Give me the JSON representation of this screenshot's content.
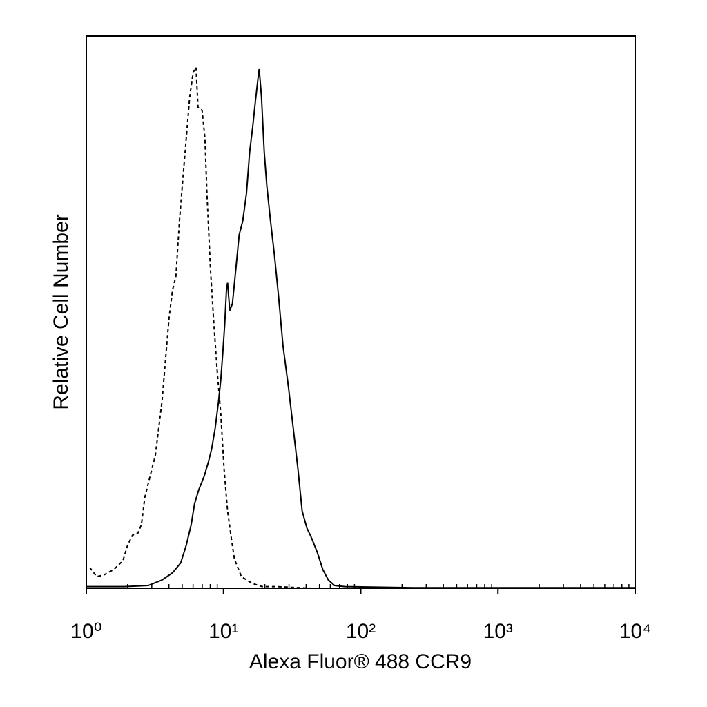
{
  "chart_data": {
    "type": "line",
    "xlabel": "Alexa Fluor® 488 CCR9",
    "ylabel": "Relative Cell Number",
    "xscale": "log",
    "xlim": [
      1,
      10000
    ],
    "xticks": [
      {
        "value": 1,
        "label": "10⁰"
      },
      {
        "value": 10,
        "label": "10¹"
      },
      {
        "value": 100,
        "label": "10²"
      },
      {
        "value": 1000,
        "label": "10³"
      },
      {
        "value": 10000,
        "label": "10⁴"
      }
    ],
    "xminorticks": [
      2,
      3,
      4,
      5,
      6,
      7,
      8,
      9,
      20,
      30,
      40,
      50,
      60,
      70,
      80,
      90,
      200,
      300,
      400,
      500,
      600,
      700,
      800,
      900,
      2000,
      3000,
      4000,
      5000,
      6000,
      7000,
      8000,
      9000
    ],
    "ylim": [
      0,
      100
    ],
    "grid": false,
    "series": [
      {
        "color": "#000000",
        "dashed": true,
        "x": [
          1.06,
          1.19,
          1.34,
          1.59,
          1.85,
          2.0,
          2.17,
          2.38,
          2.52,
          2.67,
          2.83,
          3.0,
          3.18,
          3.37,
          3.57,
          3.78,
          4.01,
          4.25,
          4.5,
          4.77,
          5.05,
          5.35,
          5.67,
          6.01,
          6.3,
          6.52,
          6.98,
          7.32,
          7.57,
          8.03,
          8.51,
          9.01,
          9.55,
          10.1,
          10.7,
          11.4,
          12.0,
          13.5,
          16.1,
          19.1,
          24.1,
          43.0,
          76.6
        ],
        "values": [
          3.75,
          2.1,
          2.4,
          3.4,
          5,
          7.8,
          9.6,
          10,
          11.5,
          16.5,
          19,
          21.5,
          24,
          29,
          34,
          41.5,
          49,
          54,
          56.5,
          66.5,
          74,
          81.5,
          89,
          93.4,
          94.3,
          87.1,
          86.5,
          81.5,
          71.5,
          57.8,
          47.8,
          39,
          31.5,
          21.5,
          14,
          9,
          5.3,
          2.1,
          0.9,
          0.3,
          0.3,
          0,
          0
        ]
      },
      {
        "color": "#000000",
        "dashed": false,
        "x": [
          1.0,
          1.89,
          2.83,
          3.57,
          4.25,
          4.88,
          5.35,
          5.81,
          6.15,
          6.59,
          7.23,
          7.75,
          8.21,
          8.7,
          9.22,
          9.55,
          9.89,
          10.2,
          10.5,
          10.7,
          11.1,
          11.6,
          12.3,
          13.0,
          13.8,
          14.7,
          15.5,
          16.3,
          17.0,
          17.8,
          18.2,
          18.9,
          19.8,
          20.7,
          22.0,
          23.5,
          25.2,
          27.1,
          29.7,
          32.2,
          34.9,
          37.4,
          40.5,
          44.0,
          48.2,
          52.9,
          58.0,
          64.4,
          76.6,
          244,
          10000
        ],
        "values": [
          0.3,
          0.3,
          0.5,
          1.5,
          2.8,
          4.6,
          7.8,
          11.5,
          15.3,
          17.8,
          20.3,
          22.8,
          25.3,
          29,
          34,
          37.8,
          42.8,
          47.8,
          54,
          55.3,
          50.3,
          51.5,
          57.8,
          64,
          66.5,
          71.5,
          79,
          83.4,
          87.8,
          92.1,
          94,
          89,
          79,
          72.8,
          66.5,
          60.3,
          52.8,
          44,
          36.5,
          29,
          21.5,
          14,
          10.9,
          9,
          6.5,
          3.4,
          1.5,
          0.5,
          0.3,
          0.1,
          0.1
        ]
      }
    ]
  }
}
